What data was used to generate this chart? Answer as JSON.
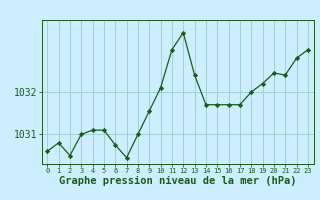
{
  "x": [
    0,
    1,
    2,
    3,
    4,
    5,
    6,
    7,
    8,
    9,
    10,
    11,
    12,
    13,
    14,
    15,
    16,
    17,
    18,
    19,
    20,
    21,
    22,
    23
  ],
  "y": [
    1030.6,
    1030.8,
    1030.5,
    1031.0,
    1031.1,
    1031.1,
    1030.75,
    1030.45,
    1031.0,
    1031.55,
    1032.1,
    1033.0,
    1033.4,
    1032.4,
    1031.7,
    1031.7,
    1031.7,
    1031.7,
    1032.0,
    1032.2,
    1032.45,
    1032.4,
    1032.8,
    1033.0
  ],
  "line_color": "#1a5c1a",
  "marker": "D",
  "marker_size": 2.2,
  "background_color": "#cceeff",
  "grid_color": "#99cccc",
  "title": "Graphe pression niveau de la mer (hPa)",
  "title_color": "#1a5c1a",
  "title_fontsize": 7.5,
  "ylim": [
    1030.3,
    1033.7
  ],
  "yticks": [
    1031,
    1032
  ],
  "xlim": [
    -0.5,
    23.5
  ],
  "xtick_labels": [
    "0",
    "1",
    "2",
    "3",
    "4",
    "5",
    "6",
    "7",
    "8",
    "9",
    "10",
    "11",
    "12",
    "13",
    "14",
    "15",
    "16",
    "17",
    "18",
    "19",
    "20",
    "21",
    "22",
    "23"
  ],
  "axis_color": "#1a5c1a",
  "tick_color": "#1a5c1a",
  "ytick_fontsize": 7,
  "xtick_fontsize": 5
}
